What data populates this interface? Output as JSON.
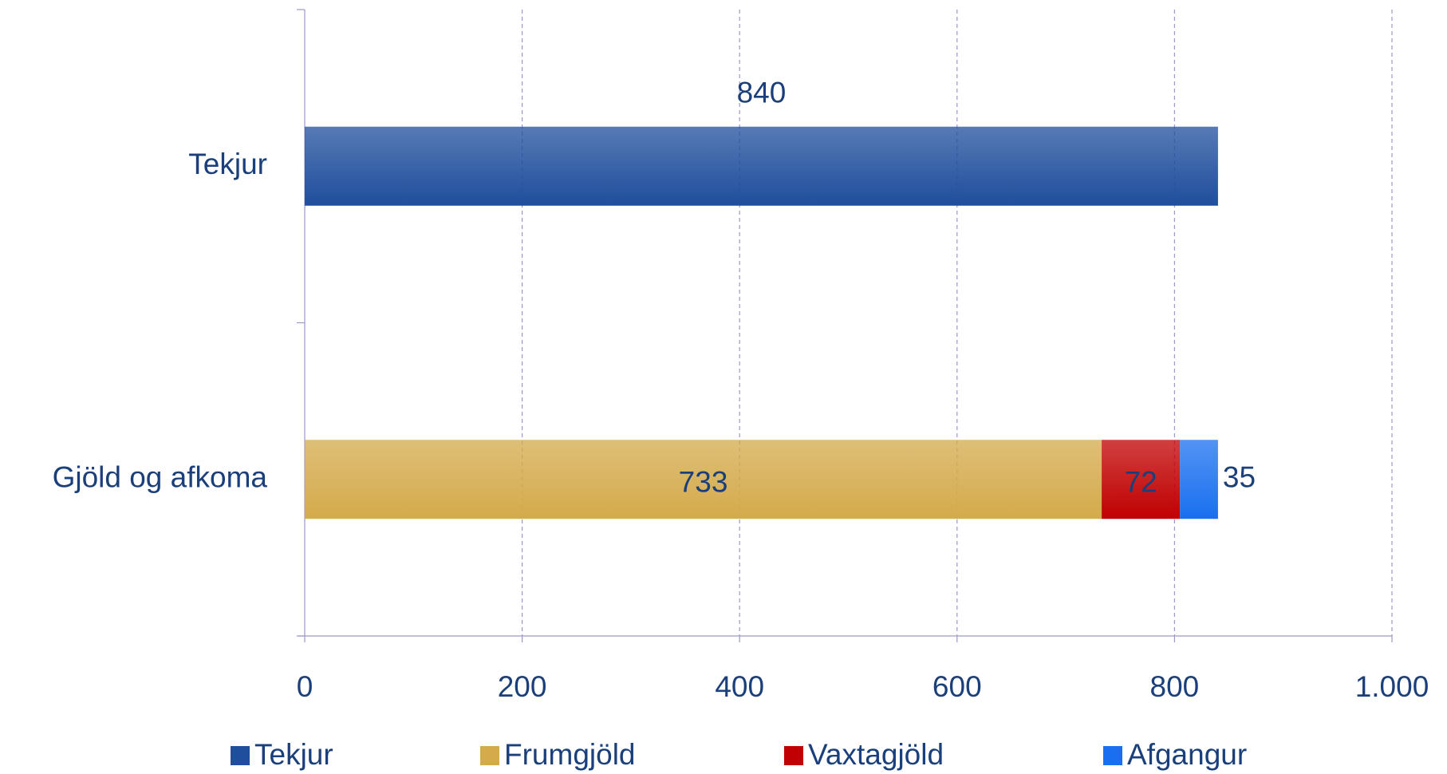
{
  "chart_data": {
    "type": "stacked_barh",
    "categories": [
      "Tekjur",
      "Gjöld og afkoma"
    ],
    "series": [
      {
        "name": "Tekjur",
        "color": "#1f4e9c",
        "values": [
          840,
          null
        ]
      },
      {
        "name": "Frumgjöld",
        "color": "#d4aa4a",
        "values": [
          null,
          733
        ]
      },
      {
        "name": "Vaxtagjöld",
        "color": "#c00000",
        "values": [
          null,
          72
        ]
      },
      {
        "name": "Afgangur",
        "color": "#1a6ff0",
        "values": [
          null,
          35
        ]
      }
    ],
    "xlim": [
      0,
      1000
    ],
    "xticks": [
      0,
      200,
      400,
      600,
      800,
      {
        "value": 1000,
        "label": "1.000"
      }
    ],
    "grid": true,
    "legend": "bottom"
  }
}
